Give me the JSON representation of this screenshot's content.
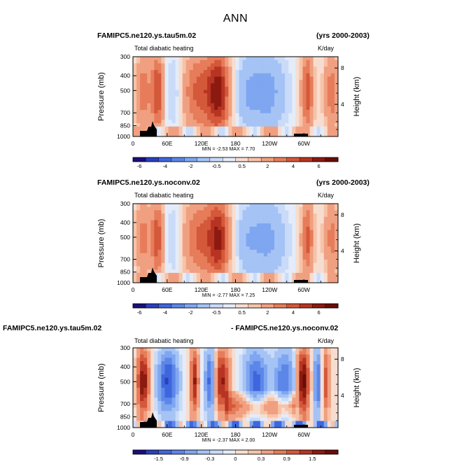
{
  "main_title": "ANN",
  "chart_data": [
    {
      "type": "heatmap",
      "run": "FAMIPC5.ne120.ys.tau5m.02",
      "years": "(yrs 2000-2003)",
      "field": "Total diabatic heating",
      "units": "K/day",
      "ylabel_left": "Pressure (mb)",
      "ylabel_right": "Height (km)",
      "y_ticks": [
        "300",
        "400",
        "500",
        "700",
        "850",
        "1000"
      ],
      "y_right_ticks": [
        "8",
        "4"
      ],
      "x_ticks": [
        "0",
        "60E",
        "120E",
        "180",
        "120W",
        "60W"
      ],
      "stats": "MIN =  -2.53  MAX =   7.70",
      "colorbar_labels": [
        "-6",
        "-4",
        "-2",
        "-0.5",
        "0.5",
        "2",
        "4",
        "6"
      ],
      "min": -2.53,
      "max": 7.7
    },
    {
      "type": "heatmap",
      "run": "FAMIPC5.ne120.ys.noconv.02",
      "years": "(yrs 2000-2003)",
      "field": "Total diabatic heating",
      "units": "K/day",
      "ylabel_left": "Pressure (mb)",
      "ylabel_right": "Height (km)",
      "y_ticks": [
        "300",
        "400",
        "500",
        "700",
        "850",
        "1000"
      ],
      "y_right_ticks": [
        "8",
        "4"
      ],
      "x_ticks": [
        "0",
        "60E",
        "120E",
        "180",
        "120W",
        "60W"
      ],
      "stats": "MIN =  -2.77  MAX =   7.25",
      "colorbar_labels": [
        "-6",
        "-4",
        "-2",
        "-0.5",
        "0.5",
        "2",
        "4",
        "6"
      ],
      "min": -2.77,
      "max": 7.25
    },
    {
      "type": "heatmap",
      "run": "FAMIPC5.ne120.ys.tau5m.02",
      "years": "- FAMIPC5.ne120.ys.noconv.02",
      "field": "Total diabatic heating",
      "units": "K/day",
      "ylabel_left": "Pressure (mb)",
      "ylabel_right": "Height (km)",
      "y_ticks": [
        "300",
        "400",
        "500",
        "700",
        "850",
        "1000"
      ],
      "y_right_ticks": [
        "8",
        "4"
      ],
      "x_ticks": [
        "0",
        "60E",
        "120E",
        "180",
        "120W",
        "60W"
      ],
      "stats": "MIN =  -2.37  MAX =   2.00",
      "colorbar_labels": [
        "-1.5",
        "-0.9",
        "-0.3",
        "0",
        "0.3",
        "0.9",
        "1.5"
      ],
      "min": -2.37,
      "max": 2.0
    }
  ],
  "colors": {
    "scale": [
      "#1a0f7a",
      "#2a3fc0",
      "#3f66dc",
      "#5c86e8",
      "#7fa6f0",
      "#a5c3f5",
      "#c9dbf8",
      "#e4ecf9",
      "#f7ddd0",
      "#f7c3a8",
      "#f0a080",
      "#e67c5a",
      "#d4583a",
      "#b83422",
      "#8c1a10",
      "#6a0c08"
    ],
    "orography": "#000000"
  }
}
